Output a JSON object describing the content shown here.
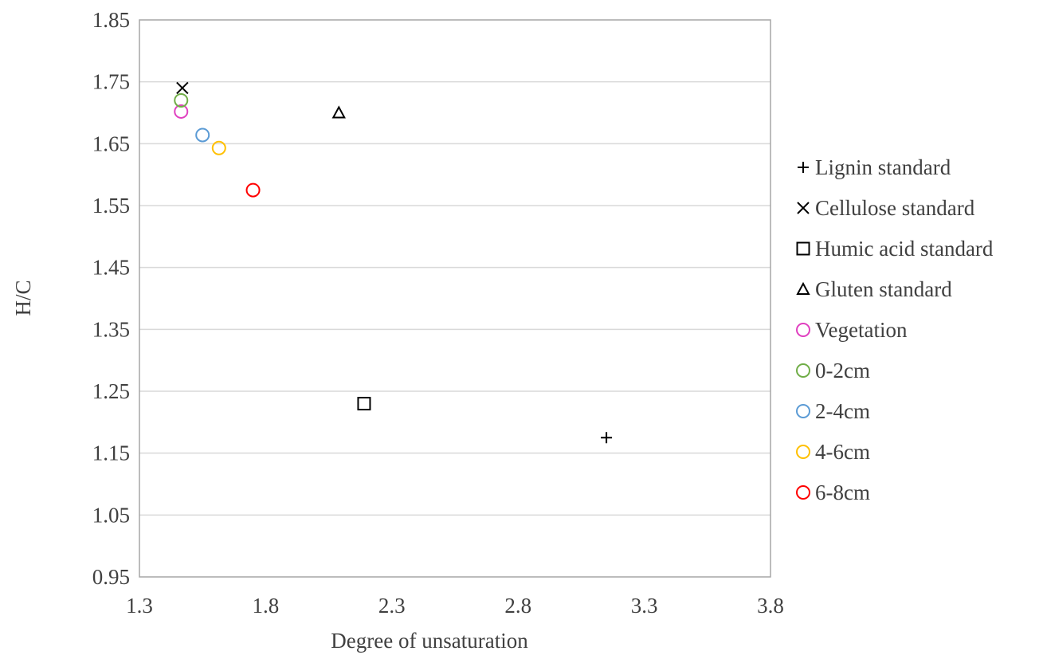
{
  "chart_data": {
    "type": "scatter",
    "title": "",
    "xlabel": "Degree of unsaturation",
    "ylabel": "H/C",
    "xlim": [
      1.3,
      3.8
    ],
    "ylim": [
      0.95,
      1.85
    ],
    "xticks": [
      1.3,
      1.8,
      2.3,
      2.8,
      3.3,
      3.8
    ],
    "xtick_labels": [
      "1.3",
      "1.8",
      "2.3",
      "2.8",
      "3.3",
      "3.8"
    ],
    "yticks": [
      0.95,
      1.05,
      1.15,
      1.25,
      1.35,
      1.45,
      1.55,
      1.65,
      1.75,
      1.85
    ],
    "ytick_labels": [
      "0.95",
      "1.05",
      "1.15",
      "1.25",
      "1.35",
      "1.45",
      "1.55",
      "1.65",
      "1.75",
      "1.85"
    ],
    "grid": "horizontal",
    "legend_position": "right",
    "series": [
      {
        "name": "Lignin standard",
        "marker": "plus",
        "color": "#000000",
        "points": [
          {
            "x": 3.15,
            "y": 1.175
          }
        ]
      },
      {
        "name": "Cellulose standard",
        "marker": "cross",
        "color": "#000000",
        "points": [
          {
            "x": 1.47,
            "y": 1.74
          }
        ]
      },
      {
        "name": "Humic acid standard",
        "marker": "square",
        "color": "#000000",
        "points": [
          {
            "x": 2.19,
            "y": 1.23
          }
        ]
      },
      {
        "name": "Gluten standard",
        "marker": "triangle",
        "color": "#000000",
        "points": [
          {
            "x": 2.09,
            "y": 1.7
          }
        ]
      },
      {
        "name": "Vegetation",
        "marker": "circle",
        "color": "#E040C0",
        "points": [
          {
            "x": 1.465,
            "y": 1.702
          }
        ]
      },
      {
        "name": "0-2cm",
        "marker": "circle",
        "color": "#70AD47",
        "points": [
          {
            "x": 1.465,
            "y": 1.72
          }
        ]
      },
      {
        "name": "2-4cm",
        "marker": "circle",
        "color": "#5B9BD5",
        "points": [
          {
            "x": 1.55,
            "y": 1.664
          }
        ]
      },
      {
        "name": "4-6cm",
        "marker": "circle",
        "color": "#FFC000",
        "points": [
          {
            "x": 1.615,
            "y": 1.643
          }
        ]
      },
      {
        "name": "6-8cm",
        "marker": "circle",
        "color": "#FF0000",
        "points": [
          {
            "x": 1.75,
            "y": 1.575
          }
        ]
      }
    ],
    "colors": {
      "grid": "#D9D9D9",
      "frame": "#A6A6A6",
      "text": "#404040"
    }
  }
}
